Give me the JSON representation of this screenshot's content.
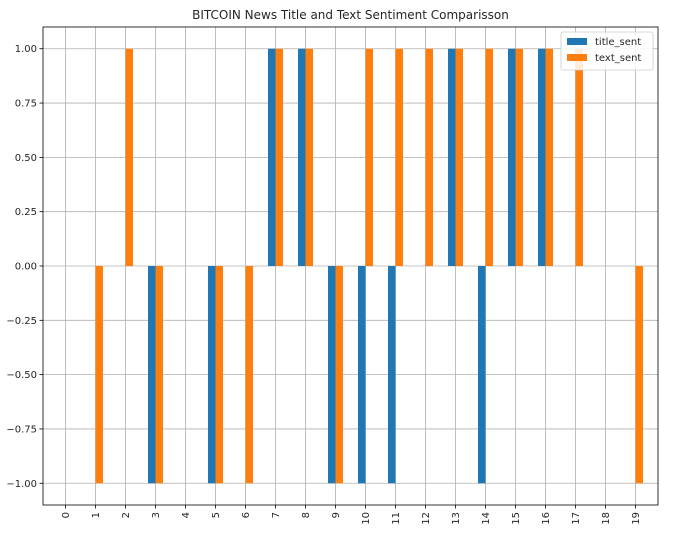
{
  "chart_data": {
    "type": "bar",
    "title": "BITCOIN News Title and Text Sentiment Comparisson",
    "xlabel": "",
    "ylabel": "",
    "categories": [
      "0",
      "1",
      "2",
      "3",
      "4",
      "5",
      "6",
      "7",
      "8",
      "9",
      "10",
      "11",
      "12",
      "13",
      "14",
      "15",
      "16",
      "17",
      "18",
      "19"
    ],
    "series": [
      {
        "name": "title_sent",
        "color": "#1f77b4",
        "values": [
          0,
          0,
          0,
          -1,
          0,
          -1,
          0,
          1,
          1,
          -1,
          -1,
          -1,
          0,
          1,
          -1,
          1,
          1,
          0,
          0,
          0
        ]
      },
      {
        "name": "text_sent",
        "color": "#ff7f0e",
        "values": [
          0,
          -1,
          1,
          -1,
          0,
          -1,
          -1,
          1,
          1,
          -1,
          1,
          1,
          1,
          1,
          1,
          1,
          1,
          1,
          0,
          -1
        ]
      }
    ],
    "ylim": [
      -1.1,
      1.1
    ],
    "yticks": [
      -1.0,
      -0.75,
      -0.5,
      -0.25,
      0.0,
      0.25,
      0.5,
      0.75,
      1.0
    ],
    "ytick_labels": [
      "−1.00",
      "−0.75",
      "−0.50",
      "−0.25",
      "0.00",
      "0.25",
      "0.50",
      "0.75",
      "1.00"
    ],
    "grid": true,
    "legend_position": "top-right",
    "xtick_rotation": "vertical"
  }
}
